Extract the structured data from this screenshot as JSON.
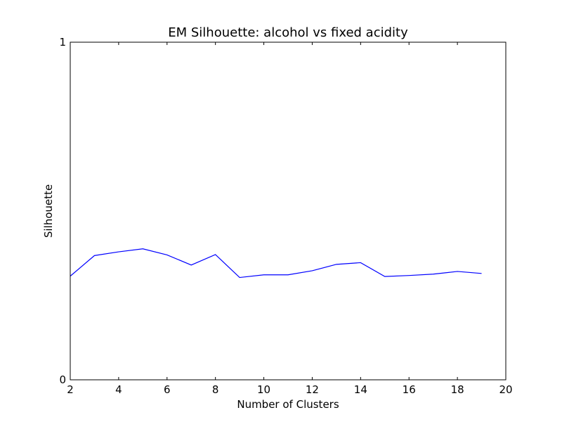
{
  "chart_data": {
    "type": "line",
    "title": "EM Silhouette: alcohol vs fixed acidity",
    "xlabel": "Number of Clusters",
    "ylabel": "Silhouette",
    "xlim": [
      2,
      20
    ],
    "ylim": [
      0,
      1
    ],
    "xticks": [
      "2",
      "4",
      "6",
      "8",
      "10",
      "12",
      "14",
      "16",
      "18",
      "20"
    ],
    "yticks": [
      "0",
      "1"
    ],
    "grid": false,
    "series": [
      {
        "color": "#0000ff",
        "x": [
          2,
          3,
          4,
          5,
          6,
          7,
          8,
          9,
          10,
          11,
          12,
          13,
          14,
          15,
          16,
          17,
          18,
          19
        ],
        "y": [
          0.307,
          0.368,
          0.379,
          0.388,
          0.37,
          0.34,
          0.371,
          0.303,
          0.311,
          0.311,
          0.323,
          0.342,
          0.347,
          0.306,
          0.309,
          0.313,
          0.321,
          0.315
        ]
      }
    ]
  }
}
